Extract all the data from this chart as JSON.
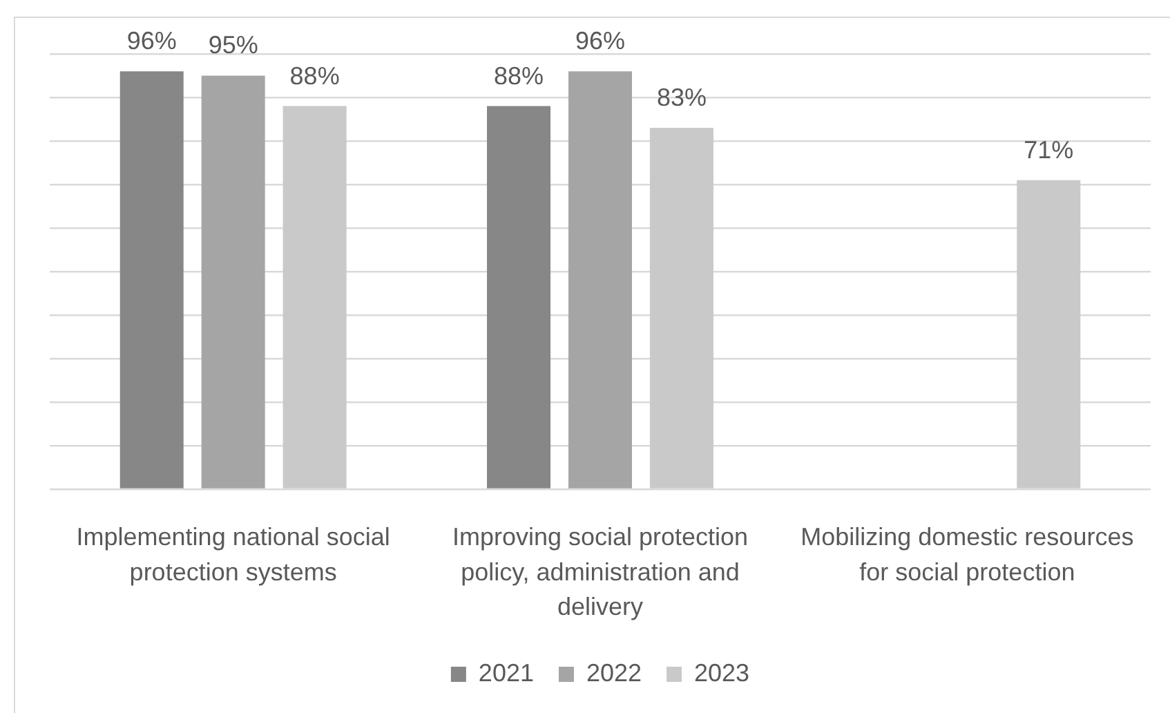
{
  "chart_data": {
    "type": "bar",
    "categories": [
      "Implementing national social protection systems",
      "Improving social protection policy, administration and delivery",
      "Mobilizing domestic resources for social protection"
    ],
    "series": [
      {
        "name": "2021",
        "color": "#878787",
        "values": [
          96,
          88,
          null
        ],
        "value_labels": [
          "96%",
          "88%",
          null
        ]
      },
      {
        "name": "2022",
        "color": "#a5a5a5",
        "values": [
          95,
          96,
          null
        ],
        "value_labels": [
          "95%",
          "96%",
          null
        ]
      },
      {
        "name": "2023",
        "color": "#c9c9c9",
        "values": [
          88,
          83,
          71
        ],
        "value_labels": [
          "88%",
          "83%",
          "71%"
        ]
      }
    ],
    "ylim": [
      0,
      100
    ],
    "yticks": [
      {
        "value": 0,
        "label": null
      },
      {
        "value": 10,
        "label": null
      },
      {
        "value": 20,
        "label": null
      },
      {
        "value": 30,
        "label": null
      },
      {
        "value": 40,
        "label": null
      },
      {
        "value": 50,
        "label": null
      },
      {
        "value": 60,
        "label": null
      },
      {
        "value": 70,
        "label": null
      },
      {
        "value": 80,
        "label": null
      },
      {
        "value": 90,
        "label": null
      },
      {
        "value": 100,
        "label": null
      }
    ],
    "grid": "y",
    "legend": "bottom",
    "tick_labels": "x"
  }
}
